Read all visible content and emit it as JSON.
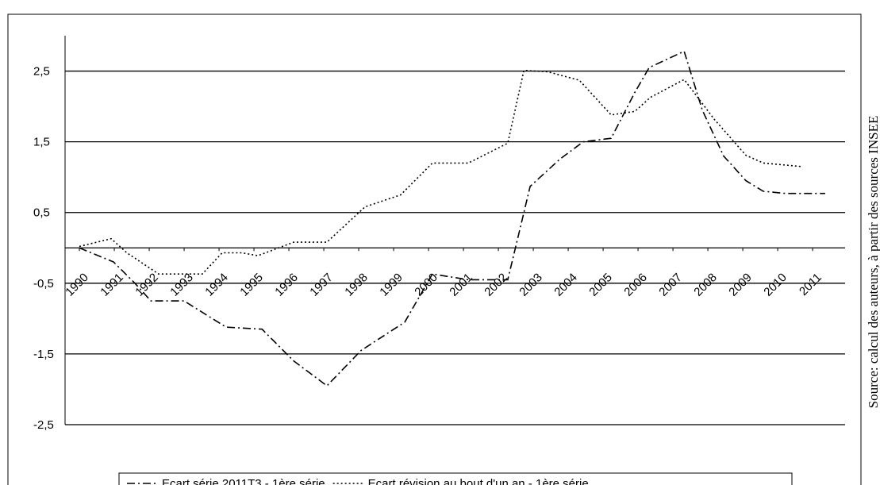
{
  "chart_data": {
    "type": "line",
    "source": "Source: calcul des auteurs, à partir des sources INSEE",
    "xlim": [
      1989.59,
      2011.93
    ],
    "xticks": [
      1990,
      1991,
      1992,
      1993,
      1994,
      1995,
      1996,
      1997,
      1998,
      1999,
      2000,
      2001,
      2002,
      2003,
      2004,
      2005,
      2006,
      2007,
      2008,
      2009,
      2010,
      2011
    ],
    "ylim": [
      -2.5,
      3
    ],
    "yticks": [
      {
        "value": -2.5,
        "label": "-2,5"
      },
      {
        "value": -1.5,
        "label": "-1,5"
      },
      {
        "value": -0.5,
        "label": "-0,5"
      },
      {
        "value": 0.5,
        "label": "0,5"
      },
      {
        "value": 1.5,
        "label": "1,5"
      },
      {
        "value": 2.5,
        "label": "2,5"
      }
    ],
    "grid": true,
    "legend": "bottom",
    "series": [
      {
        "name": "Ecart série 2011T3 - 1ère série",
        "color": "#000000",
        "dash": "10,4,2,4",
        "x": [
          1990,
          1990.98,
          1991.59,
          1992.05,
          1993,
          1994.2,
          1995.23,
          1996.14,
          1997.09,
          1998.07,
          1999.32,
          2000.11,
          2001.14,
          2002.27,
          2002.61,
          2002.91,
          2003.75,
          2004.43,
          2005.23,
          2005.91,
          2006.32,
          2007.32,
          2007.84,
          2008.45,
          2009.09,
          2009.59,
          2010.23,
          2011.36
        ],
        "values": [
          0,
          -0.2,
          -0.5,
          -0.75,
          -0.75,
          -1.12,
          -1.15,
          -1.6,
          -1.95,
          -1.45,
          -1.05,
          -0.37,
          -0.45,
          -0.45,
          0.25,
          0.87,
          1.25,
          1.5,
          1.55,
          2.2,
          2.55,
          2.78,
          1.95,
          1.3,
          0.95,
          0.8,
          0.77,
          0.77
        ]
      },
      {
        "name": "Ecart révision au bout d'un an - 1ère série",
        "color": "#000000",
        "dash": "2,3",
        "x": [
          1990,
          1990.91,
          1991.36,
          1992.27,
          1993.52,
          1994.09,
          1994.66,
          1995.11,
          1996.14,
          1997.09,
          1998.18,
          1999.2,
          2000.11,
          2001.14,
          2002.27,
          2002.73,
          2003.41,
          2004.32,
          2005.23,
          2005.91,
          2006.36,
          2007.32,
          2008.18,
          2009.09,
          2009.59,
          2010.68
        ],
        "values": [
          0.02,
          0.13,
          -0.07,
          -0.37,
          -0.37,
          -0.07,
          -0.07,
          -0.11,
          0.08,
          0.08,
          0.58,
          0.75,
          1.2,
          1.2,
          1.48,
          2.51,
          2.49,
          2.37,
          1.88,
          1.93,
          2.13,
          2.38,
          1.82,
          1.31,
          1.2,
          1.15
        ]
      }
    ]
  }
}
